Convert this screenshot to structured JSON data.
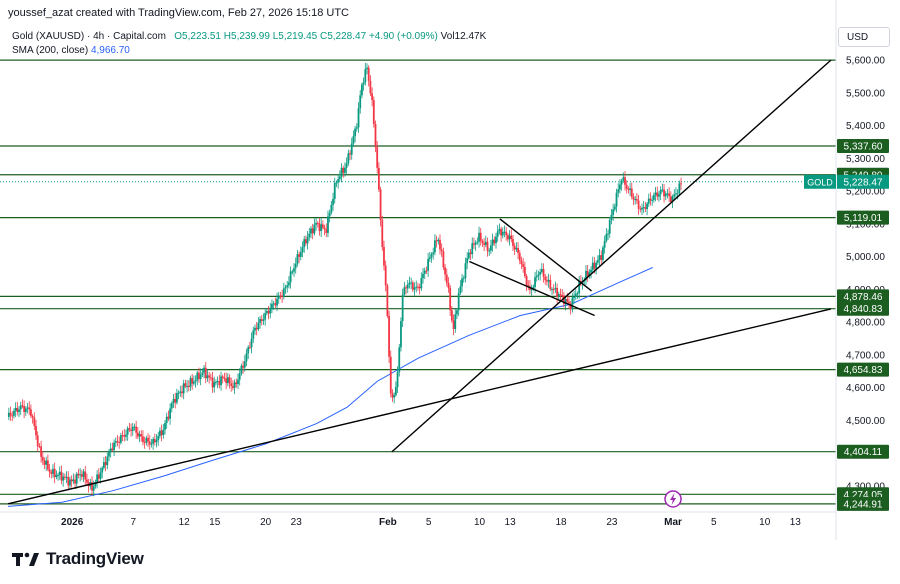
{
  "caption": "youssef_azat created with TradingView.com, Feb 27, 2026 15:18 UTC",
  "legend": {
    "symbol": "Gold (XAUUSD) · 4h · Capital.com",
    "open": "O5,223.51",
    "high": "H5,239.99",
    "low": "L5,219.45",
    "close": "C5,228.47",
    "change": "+4.90 (+0.09%)",
    "volume": "Vol12.47K",
    "sma_label": "SMA (200, close)",
    "sma_value": "4,966.70"
  },
  "currency": "USD",
  "brand": {
    "name": "TradingView",
    "icon": "tradingview-logo-icon"
  },
  "colors": {
    "up": "#089981",
    "down": "#f23645",
    "sma": "#2962ff",
    "level": "#1b5e20",
    "trend": "#000000",
    "tag_bg": "#1b5e20",
    "price_tag": "#089981"
  },
  "chart_data": {
    "type": "candlestick",
    "symbol": "Gold (XAUUSD)",
    "timeframe": "4h",
    "ylim": [
      4220,
      5640
    ],
    "y_ticks": [
      4300,
      4400,
      4500,
      4600,
      4700,
      4800,
      4900,
      5000,
      5100,
      5200,
      5300,
      5400,
      5500,
      5600
    ],
    "y_tick_labels": [
      "4,300.00",
      "4,400.00",
      "4,500.00",
      "4,600.00",
      "4,700.00",
      "4,800.00",
      "4,900.00",
      "5,000.00",
      "5,100.00",
      "5,200.00",
      "5,300.00",
      "5,400.00",
      "5,500.00",
      "5,600.00"
    ],
    "x_ticks": [
      "2026",
      "7",
      "12",
      "15",
      "20",
      "23",
      "Feb",
      "5",
      "10",
      "13",
      "18",
      "23",
      "Mar",
      "5",
      "10",
      "13"
    ],
    "x_tick_days": [
      1,
      7,
      12,
      15,
      20,
      23,
      32,
      36,
      41,
      44,
      49,
      54,
      60,
      64,
      69,
      72
    ],
    "x_range_days": [
      -5.3,
      76
    ],
    "last_price": {
      "label": "GOLD",
      "value": 5228.47,
      "text": "5,228.47"
    },
    "levels": [
      {
        "value": 5600,
        "text": ""
      },
      {
        "value": 5337.6,
        "text": "5,337.60"
      },
      {
        "value": 5249.8,
        "text": "5,249.80"
      },
      {
        "value": 5119.01,
        "text": "5,119.01"
      },
      {
        "value": 4878.46,
        "text": "4,878.46"
      },
      {
        "value": 4840.83,
        "text": "4,840.83"
      },
      {
        "value": 4654.83,
        "text": "4,654.83"
      },
      {
        "value": 4404.11,
        "text": "4,404.11"
      },
      {
        "value": 4274.05,
        "text": "4,274.05"
      },
      {
        "value": 4244.91,
        "text": "4,244.91"
      }
    ],
    "trendlines": [
      {
        "name": "lower-support-trendline",
        "from": [
          -5.3,
          4245
        ],
        "to": [
          75.5,
          4840
        ]
      },
      {
        "name": "rising-support-trendline",
        "from": [
          32.4,
          4404
        ],
        "to": [
          75.5,
          5600
        ]
      },
      {
        "name": "wedge-upper-line",
        "from": [
          43.0,
          5115
        ],
        "to": [
          52.0,
          4895
        ]
      },
      {
        "name": "wedge-lower-line",
        "from": [
          40.0,
          4985
        ],
        "to": [
          52.3,
          4820
        ]
      }
    ],
    "sma": {
      "name": "SMA (200, close)",
      "x": [
        -5.3,
        0,
        5,
        10,
        15,
        20,
        25,
        28,
        31,
        35,
        40,
        45,
        50,
        55,
        58
      ],
      "y": [
        4237,
        4250,
        4285,
        4330,
        4380,
        4428,
        4490,
        4540,
        4620,
        4690,
        4760,
        4820,
        4855,
        4925,
        4966.7
      ]
    },
    "ohlc_anchor": {
      "open": 5223.51,
      "high": 5239.99,
      "low": 5219.45,
      "close": 5228.47
    },
    "price_path": [
      [
        -5.3,
        4510
      ],
      [
        -4,
        4540
      ],
      [
        -3,
        4530
      ],
      [
        -2,
        4390
      ],
      [
        -1,
        4340
      ],
      [
        0,
        4330
      ],
      [
        1,
        4310
      ],
      [
        2,
        4340
      ],
      [
        3,
        4290
      ],
      [
        4,
        4350
      ],
      [
        5,
        4420
      ],
      [
        6,
        4450
      ],
      [
        7,
        4480
      ],
      [
        8,
        4440
      ],
      [
        9,
        4430
      ],
      [
        10,
        4470
      ],
      [
        11,
        4560
      ],
      [
        12,
        4600
      ],
      [
        13,
        4620
      ],
      [
        14,
        4650
      ],
      [
        15,
        4610
      ],
      [
        16,
        4630
      ],
      [
        17,
        4600
      ],
      [
        18,
        4680
      ],
      [
        19,
        4780
      ],
      [
        20,
        4820
      ],
      [
        21,
        4860
      ],
      [
        22,
        4900
      ],
      [
        23,
        4980
      ],
      [
        24,
        5050
      ],
      [
        25,
        5100
      ],
      [
        26,
        5080
      ],
      [
        27,
        5230
      ],
      [
        28,
        5280
      ],
      [
        29,
        5400
      ],
      [
        29.5,
        5520
      ],
      [
        30,
        5580
      ],
      [
        30.5,
        5480
      ],
      [
        31,
        5290
      ],
      [
        31.5,
        5050
      ],
      [
        32,
        4850
      ],
      [
        32.4,
        4550
      ],
      [
        33,
        4620
      ],
      [
        33.5,
        4880
      ],
      [
        34,
        4920
      ],
      [
        35,
        4900
      ],
      [
        36,
        4980
      ],
      [
        37,
        5060
      ],
      [
        38,
        4900
      ],
      [
        38.5,
        4770
      ],
      [
        39,
        4880
      ],
      [
        40,
        5010
      ],
      [
        41,
        5060
      ],
      [
        42,
        5020
      ],
      [
        43,
        5080
      ],
      [
        44,
        5060
      ],
      [
        45,
        5000
      ],
      [
        46,
        4890
      ],
      [
        47,
        4960
      ],
      [
        48,
        4910
      ],
      [
        49,
        4880
      ],
      [
        50,
        4850
      ],
      [
        51,
        4920
      ],
      [
        52,
        4960
      ],
      [
        53,
        5000
      ],
      [
        54,
        5120
      ],
      [
        55,
        5240
      ],
      [
        56,
        5190
      ],
      [
        57,
        5140
      ],
      [
        58,
        5180
      ],
      [
        59,
        5200
      ],
      [
        60,
        5175
      ],
      [
        61,
        5228.47
      ]
    ]
  }
}
